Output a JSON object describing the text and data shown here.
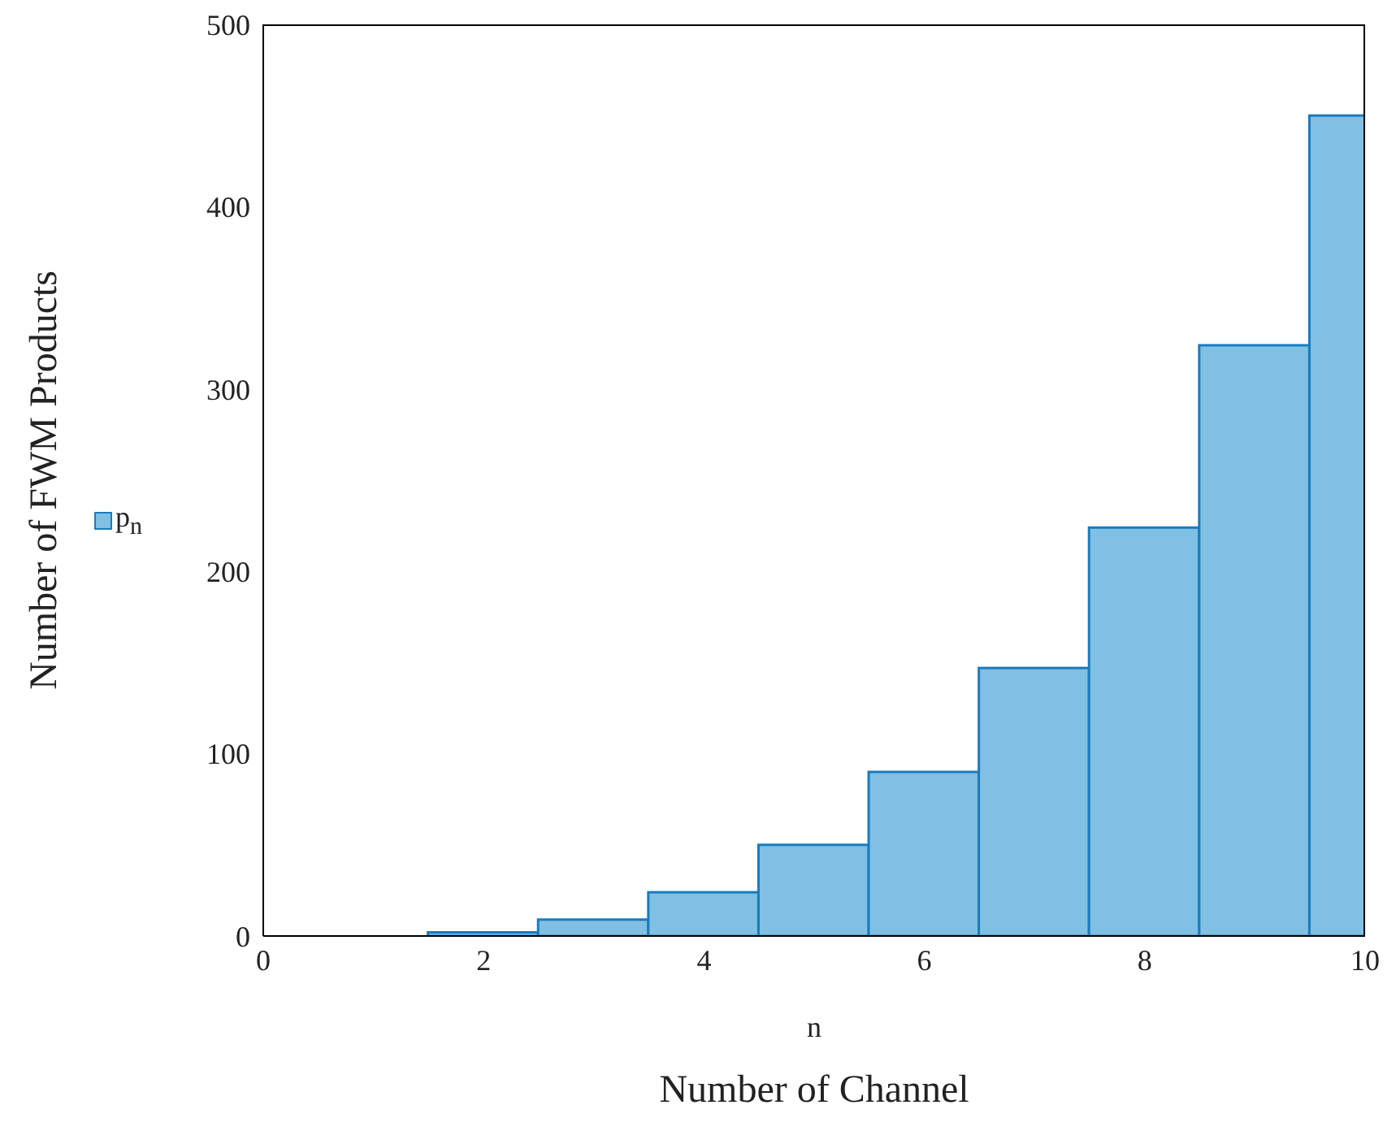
{
  "chart_data": {
    "type": "bar",
    "xlabel": "n",
    "ylabel": "Number of FWM Products",
    "annotations": [
      "Number of Channel"
    ],
    "x": [
      1,
      2,
      3,
      4,
      5,
      6,
      7,
      8,
      9,
      10
    ],
    "series": [
      {
        "name": "p$_{n}$",
        "color": "#80c0e2",
        "values": [
          0,
          2,
          9,
          24,
          50,
          90,
          147,
          224,
          324,
          450
        ]
      }
    ],
    "xlim": [
      0,
      10
    ],
    "xticks": [
      0,
      2,
      4,
      6,
      8,
      10
    ],
    "ylim": [
      0,
      500
    ],
    "yticks": [
      0,
      100,
      200,
      300,
      400,
      500
    ],
    "legend": "left"
  }
}
